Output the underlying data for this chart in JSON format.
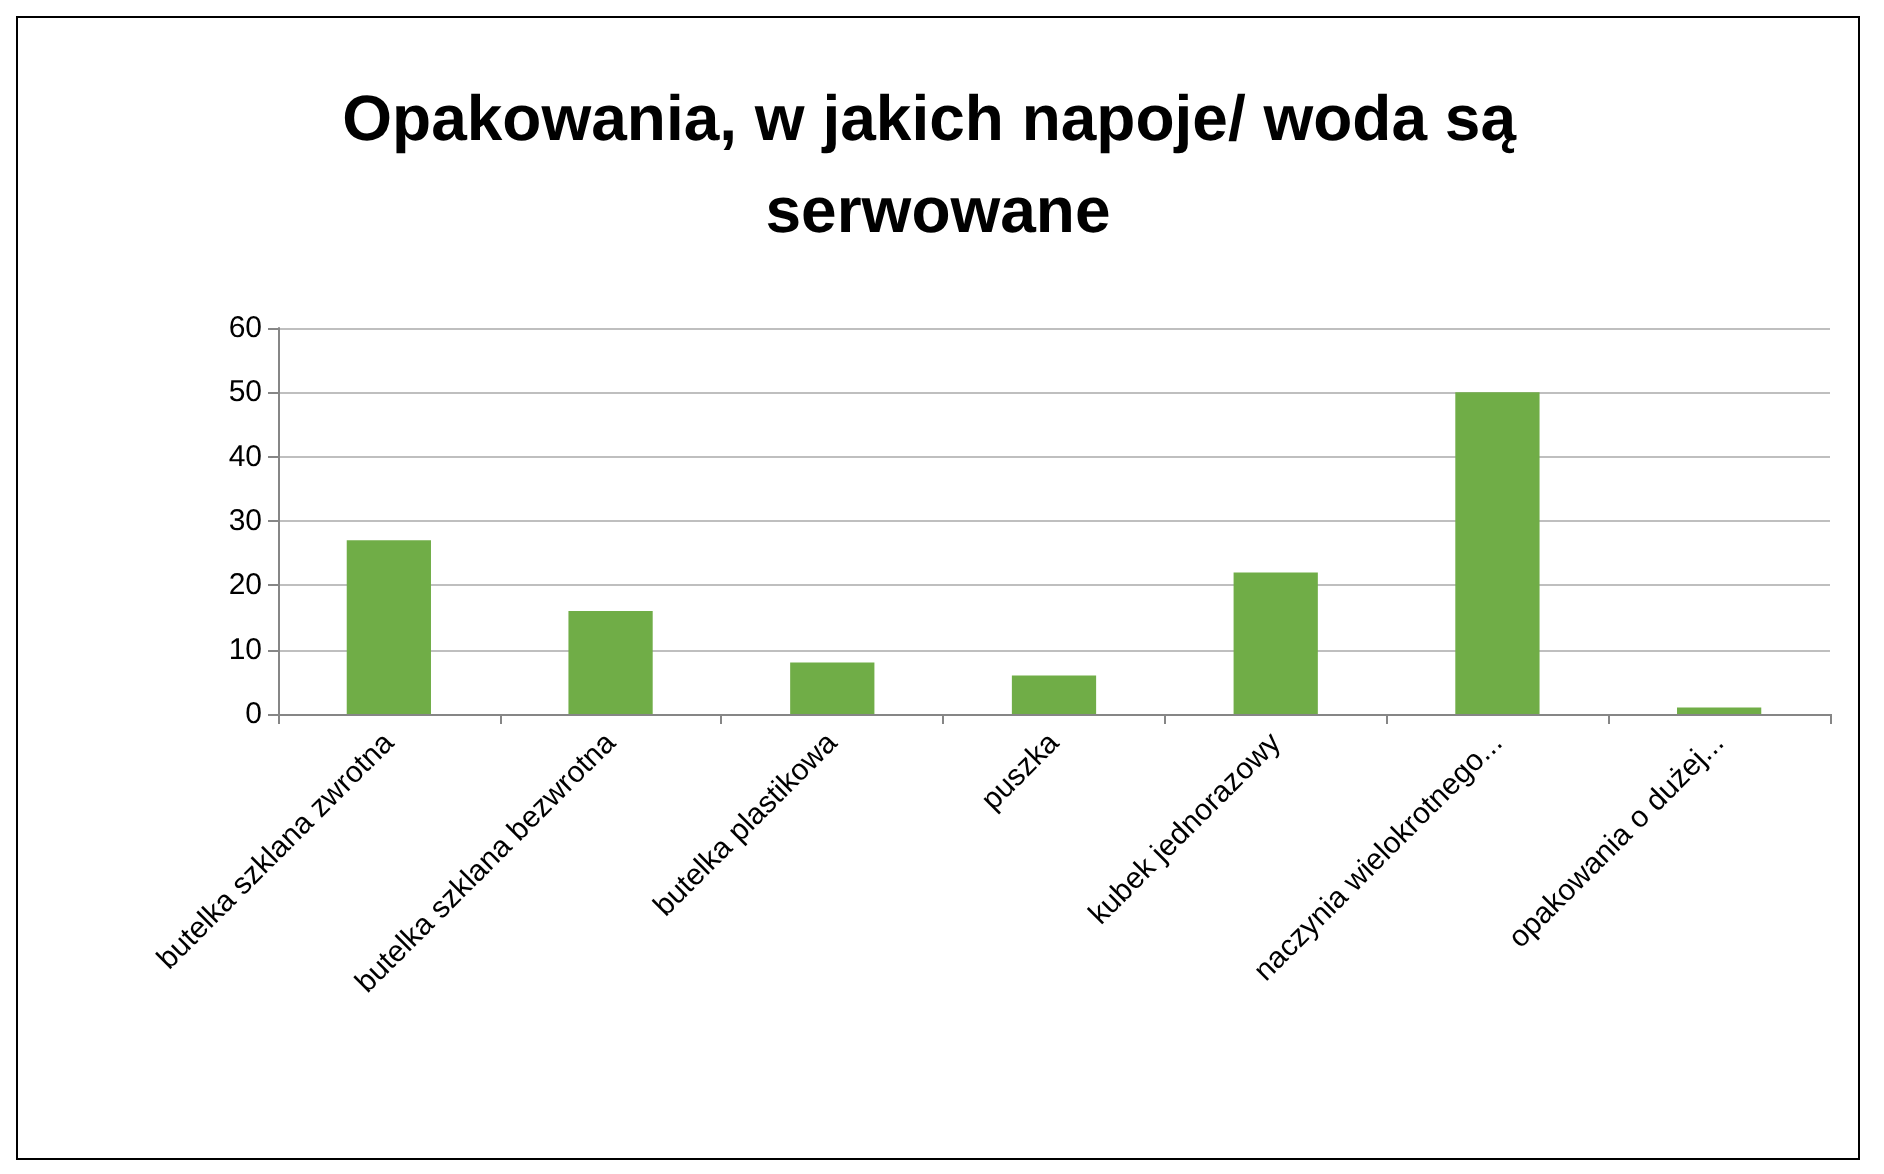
{
  "chart_data": {
    "type": "bar",
    "title": "Opakowania, w jakich napoje/ woda są serwowane",
    "categories": [
      "butelka szklana zwrotna",
      "butelka szklana bezwrotna",
      "butelka plastikowa",
      "puszka",
      "kubek jednorazowy",
      "naczynia wielokrotnego...",
      "opakowania o dużej..."
    ],
    "values": [
      27,
      16,
      8,
      6,
      22,
      50,
      1
    ],
    "color": "#70ad47",
    "ylim": [
      0,
      60
    ],
    "yticks": [
      0,
      10,
      20,
      30,
      40,
      50,
      60
    ],
    "grid": "y"
  }
}
